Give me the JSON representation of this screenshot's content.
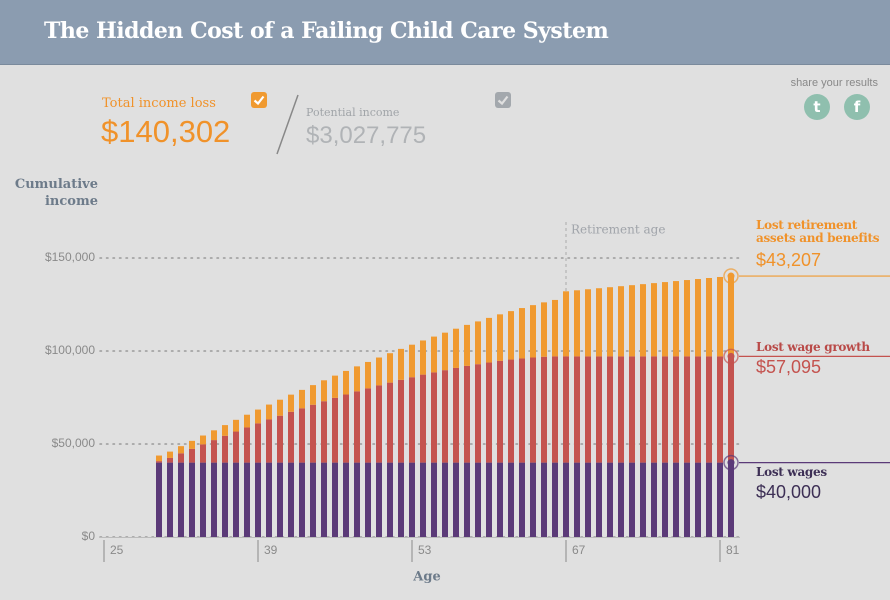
{
  "header": {
    "title": "The Hidden Cost of a Failing Child Care System"
  },
  "summary": {
    "total_label": "Total income loss",
    "total": "$140,302",
    "potential_label": "Potential income",
    "potential": "$3,027,775"
  },
  "share": {
    "label": "share your results"
  },
  "chart_data": {
    "type": "bar",
    "stacked": true,
    "ylabel": "Cumulative income",
    "xlabel": "Age",
    "x": [
      30,
      31,
      32,
      33,
      34,
      35,
      36,
      37,
      38,
      39,
      40,
      41,
      42,
      43,
      44,
      45,
      46,
      47,
      48,
      49,
      50,
      51,
      52,
      53,
      54,
      55,
      56,
      57,
      58,
      59,
      60,
      61,
      62,
      63,
      64,
      65,
      66,
      67,
      68,
      69,
      70,
      71,
      72,
      73,
      74,
      75,
      76,
      77,
      78,
      79,
      80,
      81,
      82
    ],
    "xlim": [
      24.5,
      82.5
    ],
    "xticks": [
      25,
      39,
      53,
      67,
      81
    ],
    "ylim": [
      0,
      150000
    ],
    "yticks": [
      {
        "value": 0,
        "label": "$0"
      },
      {
        "value": 50000,
        "label": "$50,000"
      },
      {
        "value": 100000,
        "label": "$100,000"
      },
      {
        "value": 150000,
        "label": "$150,000"
      }
    ],
    "grid": true,
    "annotation": {
      "text": "Retirement age",
      "x": 67
    },
    "series": [
      {
        "name": "Lost wages",
        "color": "#5b3a78",
        "end_label": "$40,000",
        "values": [
          40000,
          40000,
          40000,
          40000,
          40000,
          40000,
          40000,
          40000,
          40000,
          40000,
          40000,
          40000,
          40000,
          40000,
          40000,
          40000,
          40000,
          40000,
          40000,
          40000,
          40000,
          40000,
          40000,
          40000,
          40000,
          40000,
          40000,
          40000,
          40000,
          40000,
          40000,
          40000,
          40000,
          40000,
          40000,
          40000,
          40000,
          40000,
          40000,
          40000,
          40000,
          40000,
          40000,
          40000,
          40000,
          40000,
          40000,
          40000,
          40000,
          40000,
          40000,
          40000,
          40000
        ]
      },
      {
        "name": "Lost wage growth",
        "color": "#c4534f",
        "end_label": "$57,095",
        "values": [
          800,
          2500,
          5000,
          7400,
          9800,
          12100,
          14400,
          16700,
          18900,
          21100,
          23200,
          25200,
          27300,
          29200,
          31100,
          33000,
          34800,
          36600,
          38300,
          39900,
          41500,
          43000,
          44500,
          45900,
          47300,
          48500,
          49700,
          50900,
          52000,
          52900,
          53800,
          54700,
          55400,
          56000,
          56500,
          56900,
          57095,
          57095,
          57095,
          57095,
          57095,
          57095,
          57095,
          57095,
          57095,
          57095,
          57095,
          57095,
          57095,
          57095,
          57095,
          57095,
          57095
        ]
      },
      {
        "name": "Lost retirement assets and benefits",
        "color": "#f09a30",
        "end_label": "$43,207",
        "values": [
          3000,
          3410,
          3840,
          4290,
          4760,
          5250,
          5760,
          6290,
          6840,
          7410,
          8000,
          8610,
          9240,
          9890,
          10560,
          11250,
          11960,
          12690,
          13440,
          14210,
          15000,
          15810,
          16640,
          17490,
          18360,
          19250,
          20160,
          21090,
          22040,
          23010,
          24000,
          25010,
          26040,
          27090,
          28160,
          29250,
          30360,
          35000,
          35550,
          36100,
          36650,
          37200,
          37750,
          38300,
          38850,
          39400,
          39950,
          40500,
          41050,
          41600,
          42150,
          42700,
          43207
        ]
      }
    ]
  }
}
